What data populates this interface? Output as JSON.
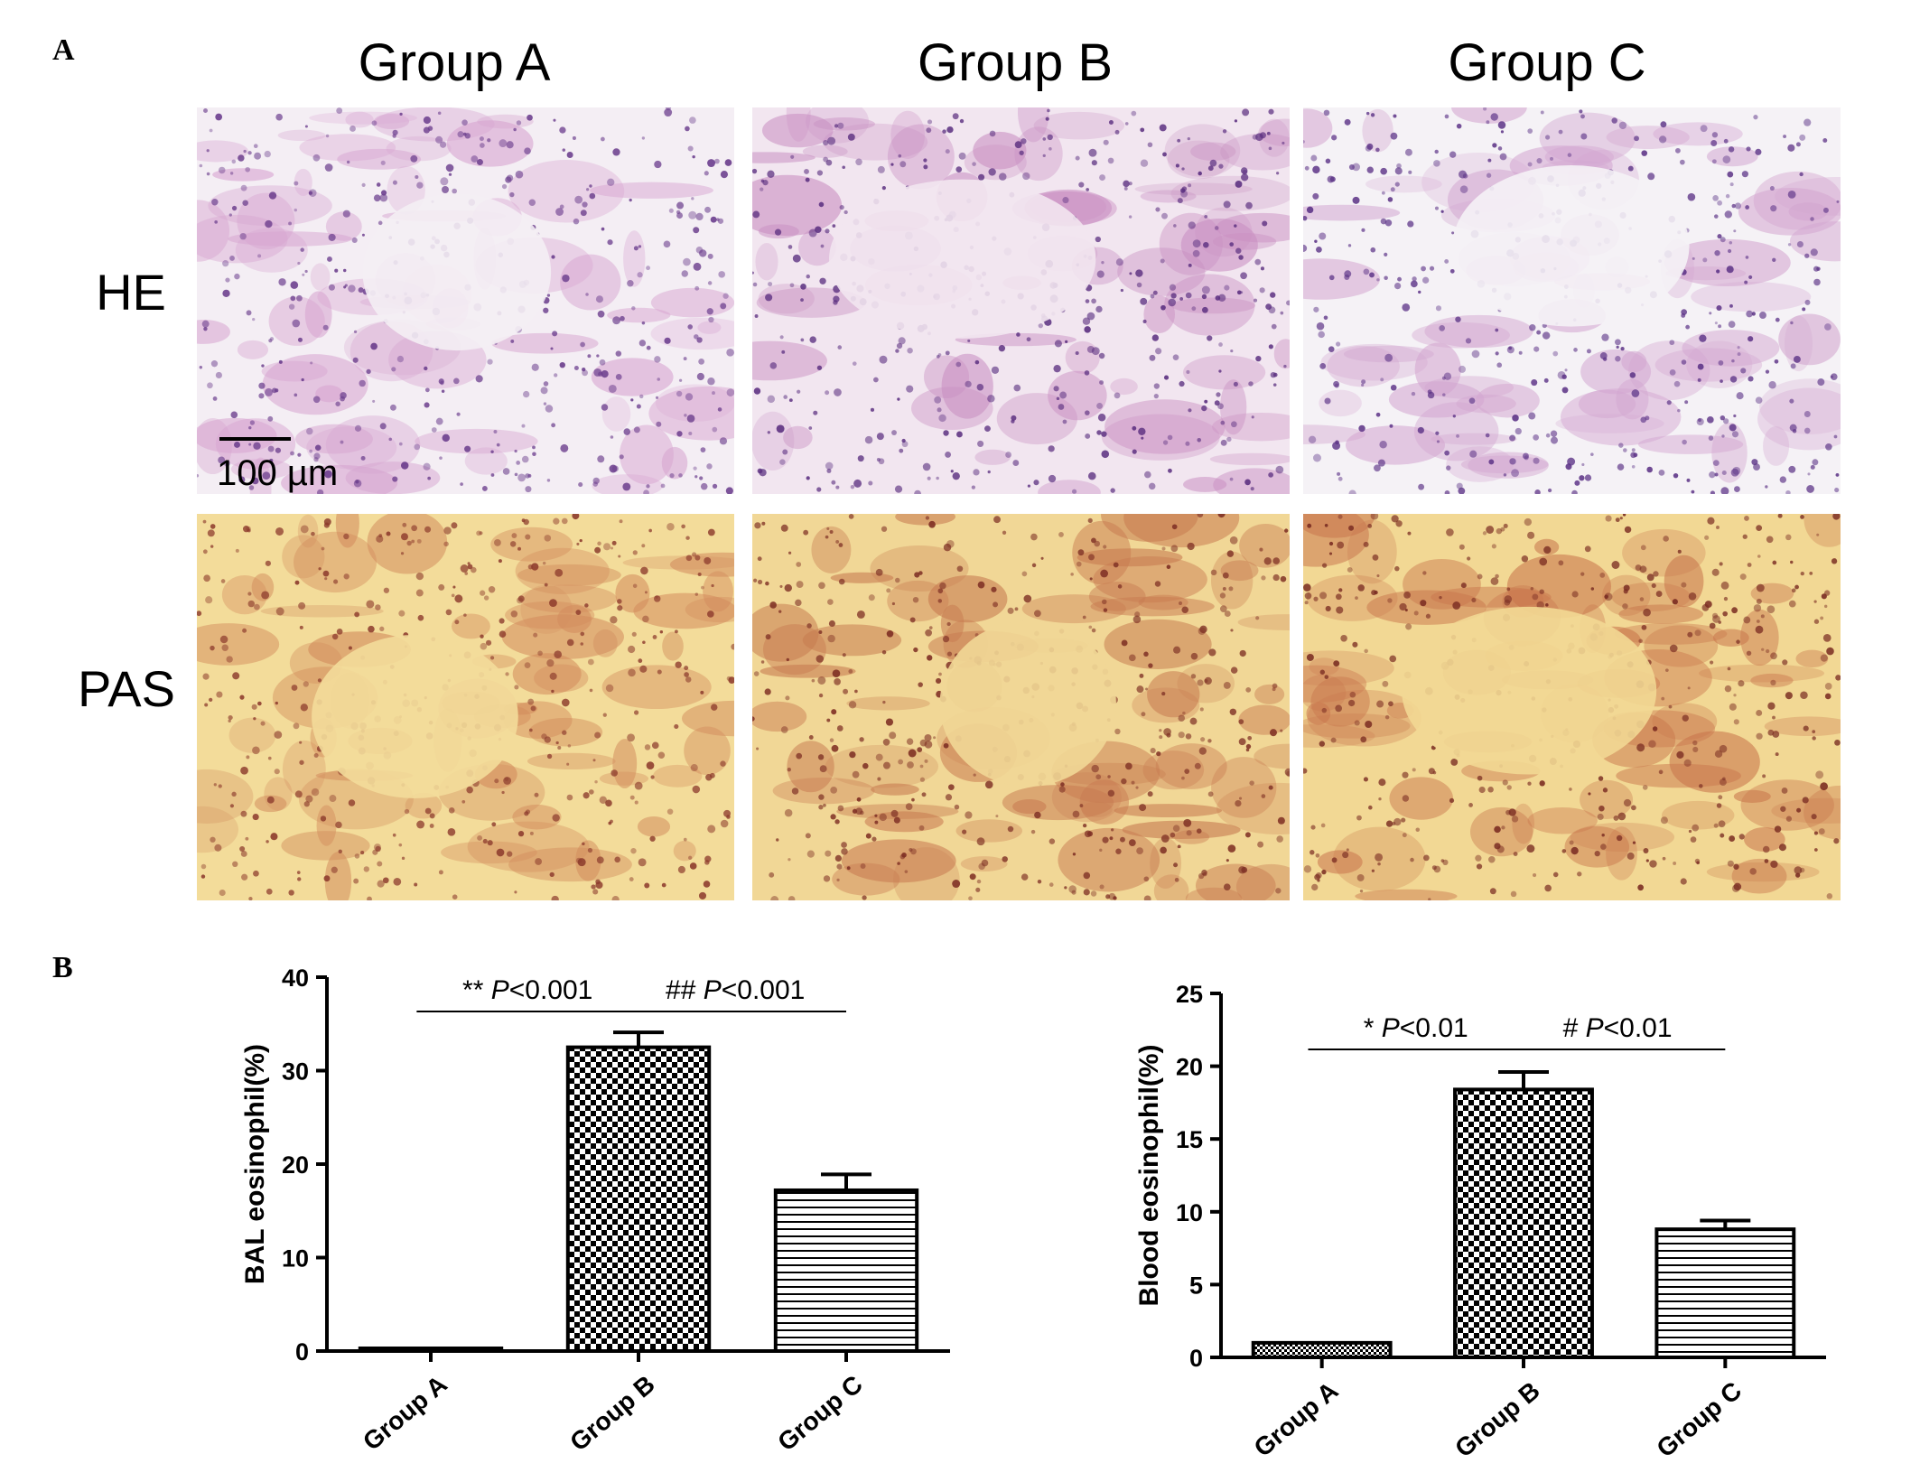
{
  "panel_a": {
    "letter": "A",
    "column_titles": [
      "Group A",
      "Group B",
      "Group C"
    ],
    "row_titles": [
      "HE",
      "PAS"
    ],
    "scale_bar_label": "100 µm",
    "micrographs": [
      {
        "row": "HE",
        "group": "Group A",
        "stain_colors": [
          "#f4eef4",
          "#d7a4d0",
          "#6a3c8c"
        ]
      },
      {
        "row": "HE",
        "group": "Group B",
        "stain_colors": [
          "#f2e6f0",
          "#c98fc2",
          "#5b2f80"
        ]
      },
      {
        "row": "HE",
        "group": "Group C",
        "stain_colors": [
          "#f5f2f6",
          "#d3a6d0",
          "#5e3588"
        ]
      },
      {
        "row": "PAS",
        "group": "Group A",
        "stain_colors": [
          "#f3dc9a",
          "#d28b5c",
          "#8c3a2c"
        ]
      },
      {
        "row": "PAS",
        "group": "Group B",
        "stain_colors": [
          "#f1d796",
          "#c77a50",
          "#7e2f24"
        ]
      },
      {
        "row": "PAS",
        "group": "Group C",
        "stain_colors": [
          "#f2d894",
          "#c8754c",
          "#7a2c22"
        ]
      }
    ]
  },
  "panel_b": {
    "letter": "B"
  },
  "chart_data": [
    {
      "type": "bar",
      "categories": [
        "Group A",
        "Group B",
        "Group C"
      ],
      "values": [
        0.2,
        32.5,
        17.2
      ],
      "errors": [
        0.1,
        1.6,
        1.7
      ],
      "patterns": [
        "solid",
        "checker",
        "hstripe"
      ],
      "ylabel": "BAL eosinophil(%)",
      "ylim": [
        0,
        40
      ],
      "yticks": [
        0,
        10,
        20,
        30,
        40
      ],
      "tick_labels": [
        "0",
        "10",
        "20",
        "30",
        "40"
      ],
      "significance": [
        {
          "from": "Group A",
          "to": "Group B",
          "mark": "**",
          "p_label": "P",
          "p_value": "<0.001"
        },
        {
          "from": "Group B",
          "to": "Group C",
          "mark": "##",
          "p_label": "P",
          "p_value": "<0.001"
        }
      ]
    },
    {
      "type": "bar",
      "categories": [
        "Group A",
        "Group B",
        "Group C"
      ],
      "values": [
        1.0,
        18.4,
        8.8
      ],
      "errors": [
        0.1,
        1.2,
        0.6
      ],
      "patterns": [
        "finechecker",
        "checker",
        "hstripe"
      ],
      "ylabel": "Blood eosinophil(%)",
      "ylim": [
        0,
        25
      ],
      "yticks": [
        0,
        5,
        10,
        15,
        20,
        25
      ],
      "tick_labels": [
        "0",
        "5",
        "10",
        "15",
        "20",
        "25"
      ],
      "significance": [
        {
          "from": "Group A",
          "to": "Group B",
          "mark": "*",
          "p_label": "P",
          "p_value": "<0.01"
        },
        {
          "from": "Group B",
          "to": "Group C",
          "mark": "#",
          "p_label": "P",
          "p_value": "<0.01"
        }
      ]
    }
  ]
}
